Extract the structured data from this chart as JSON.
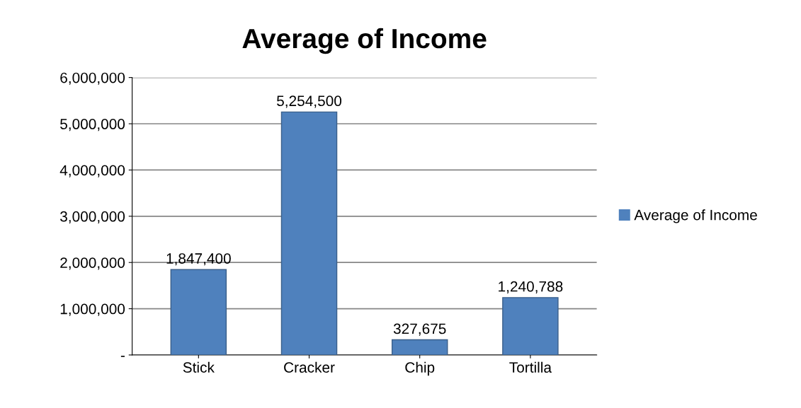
{
  "chart_data": {
    "type": "bar",
    "title": "Average of Income",
    "categories": [
      "Stick",
      "Cracker",
      "Chip",
      "Tortilla"
    ],
    "series": [
      {
        "name": "Average of Income",
        "color": "#4f81bd",
        "values": [
          1847400,
          5254500,
          327675,
          1240788
        ],
        "value_labels": [
          "1,847,400",
          "5,254,500",
          "327,675",
          "1,240,788"
        ]
      }
    ],
    "ylim": [
      0,
      6000000
    ],
    "yticks": [
      {
        "value": 0,
        "label": "-"
      },
      {
        "value": 1000000,
        "label": "1,000,000"
      },
      {
        "value": 2000000,
        "label": "2,000,000"
      },
      {
        "value": 3000000,
        "label": "3,000,000"
      },
      {
        "value": 4000000,
        "label": "4,000,000"
      },
      {
        "value": 5000000,
        "label": "5,000,000"
      },
      {
        "value": 6000000,
        "label": "6,000,000"
      }
    ],
    "grid": "y",
    "legend": "right"
  }
}
